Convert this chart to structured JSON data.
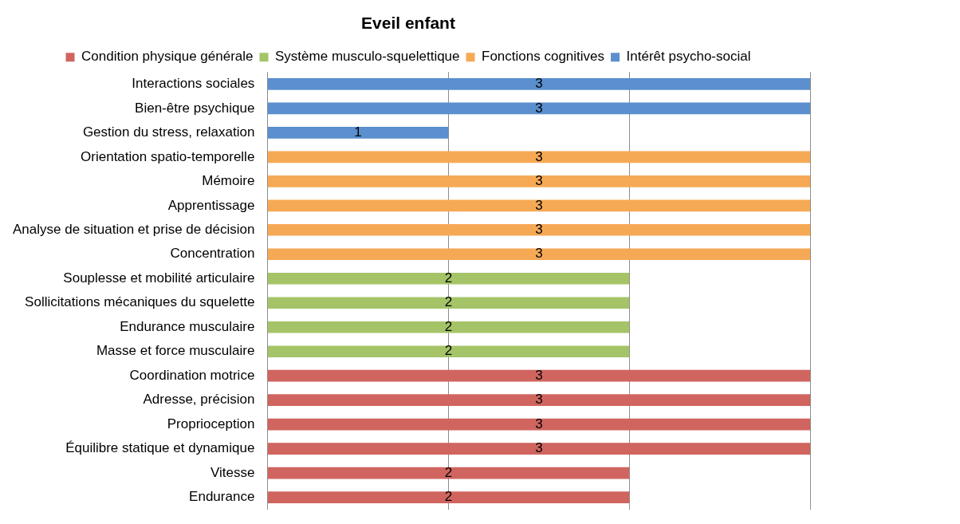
{
  "chart_data": {
    "type": "bar",
    "orientation": "horizontal",
    "title": "Eveil enfant",
    "categories": [
      "Interactions sociales",
      "Bien-être psychique",
      "Gestion du stress, relaxation",
      "Orientation spatio-temporelle",
      "Mémoire",
      "Apprentissage",
      "Analyse de situation et prise de décision",
      "Concentration",
      "Souplesse et mobilité articulaire",
      "Sollicitations mécaniques du squelette",
      "Endurance musculaire",
      "Masse et force musculaire",
      "Coordination motrice",
      "Adresse, précision",
      "Proprioception",
      "Équilibre statique et dynamique",
      "Vitesse",
      "Endurance"
    ],
    "series": [
      {
        "name": "Condition physique générale",
        "color": "#d0655f",
        "values": [
          null,
          null,
          null,
          null,
          null,
          null,
          null,
          null,
          null,
          null,
          null,
          null,
          3,
          3,
          3,
          3,
          2,
          2
        ]
      },
      {
        "name": "Système musculo-squelettique",
        "color": "#a5c468",
        "values": [
          null,
          null,
          null,
          null,
          null,
          null,
          null,
          null,
          2,
          2,
          2,
          2,
          null,
          null,
          null,
          null,
          null,
          null
        ]
      },
      {
        "name": "Fonctions cognitives",
        "color": "#f6a955",
        "values": [
          null,
          null,
          null,
          3,
          3,
          3,
          3,
          3,
          null,
          null,
          null,
          null,
          null,
          null,
          null,
          null,
          null,
          null
        ]
      },
      {
        "name": "Intérêt psycho-social",
        "color": "#5b8fce",
        "values": [
          3,
          3,
          1,
          null,
          null,
          null,
          null,
          null,
          null,
          null,
          null,
          null,
          null,
          null,
          null,
          null,
          null,
          null
        ]
      }
    ],
    "xlim": [
      0,
      3
    ],
    "xticks": [
      {
        "value": 0,
        "label": null
      },
      {
        "value": 1,
        "label": null
      },
      {
        "value": 2,
        "label": null
      },
      {
        "value": 3,
        "label": null
      }
    ],
    "tick_labels": "y",
    "grid": "x",
    "legend": "top",
    "data_labels": true
  }
}
